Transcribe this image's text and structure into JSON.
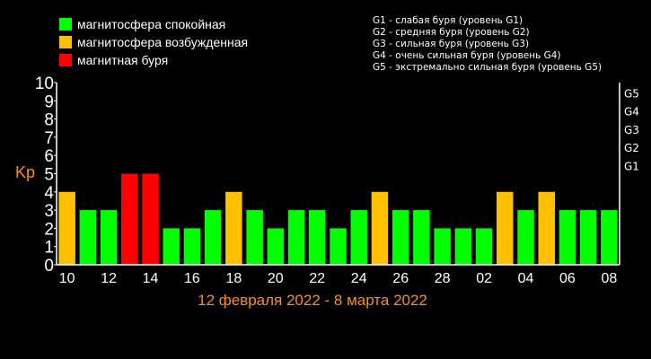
{
  "legend": {
    "items": [
      {
        "label": "магнитосфера спокойная",
        "color": "#00ff00"
      },
      {
        "label": "магнитосфера возбужденная",
        "color": "#ffc000"
      },
      {
        "label": "магнитная буря",
        "color": "#ff0000"
      }
    ]
  },
  "g_legend": {
    "items": [
      "G1 - слабая буря (уровень G1)",
      "G2 - средняя буря (уровень G2)",
      "G3 - сильная буря (уровень G3)",
      "G4 - очень сильная буря (уровень G4)",
      "G5 - экстремально сильная буря (уровень G5)"
    ]
  },
  "chart_data": {
    "type": "bar",
    "ylabel": "Kp",
    "xlabel": "12 февраля 2022 - 8 марта 2022",
    "ylim": [
      0,
      10
    ],
    "yticks": [
      "0",
      "1",
      "2",
      "3",
      "4",
      "5",
      "6",
      "7",
      "8",
      "9",
      "10"
    ],
    "xtick_labels": [
      "10",
      "12",
      "14",
      "16",
      "18",
      "20",
      "22",
      "24",
      "26",
      "28",
      "02",
      "04",
      "06",
      "08"
    ],
    "right_axis_labels": [
      {
        "label": "G1",
        "value": 5
      },
      {
        "label": "G2",
        "value": 6
      },
      {
        "label": "G3",
        "value": 7
      },
      {
        "label": "G4",
        "value": 8
      },
      {
        "label": "G5",
        "value": 9
      }
    ],
    "values": [
      4,
      3,
      3,
      5,
      5,
      2,
      2,
      3,
      4,
      3,
      2,
      3,
      3,
      2,
      3,
      4,
      3,
      3,
      2,
      2,
      2,
      4,
      3,
      4,
      3,
      3,
      3
    ],
    "bar_colors": [
      "#ffc000",
      "#00ff00",
      "#00ff00",
      "#ff0000",
      "#ff0000",
      "#00ff00",
      "#00ff00",
      "#00ff00",
      "#ffc000",
      "#00ff00",
      "#00ff00",
      "#00ff00",
      "#00ff00",
      "#00ff00",
      "#00ff00",
      "#ffc000",
      "#00ff00",
      "#00ff00",
      "#00ff00",
      "#00ff00",
      "#00ff00",
      "#ffc000",
      "#00ff00",
      "#ffc000",
      "#00ff00",
      "#00ff00",
      "#00ff00"
    ],
    "axis_color": "#ffffff",
    "label_color": "#ff8c1a"
  }
}
